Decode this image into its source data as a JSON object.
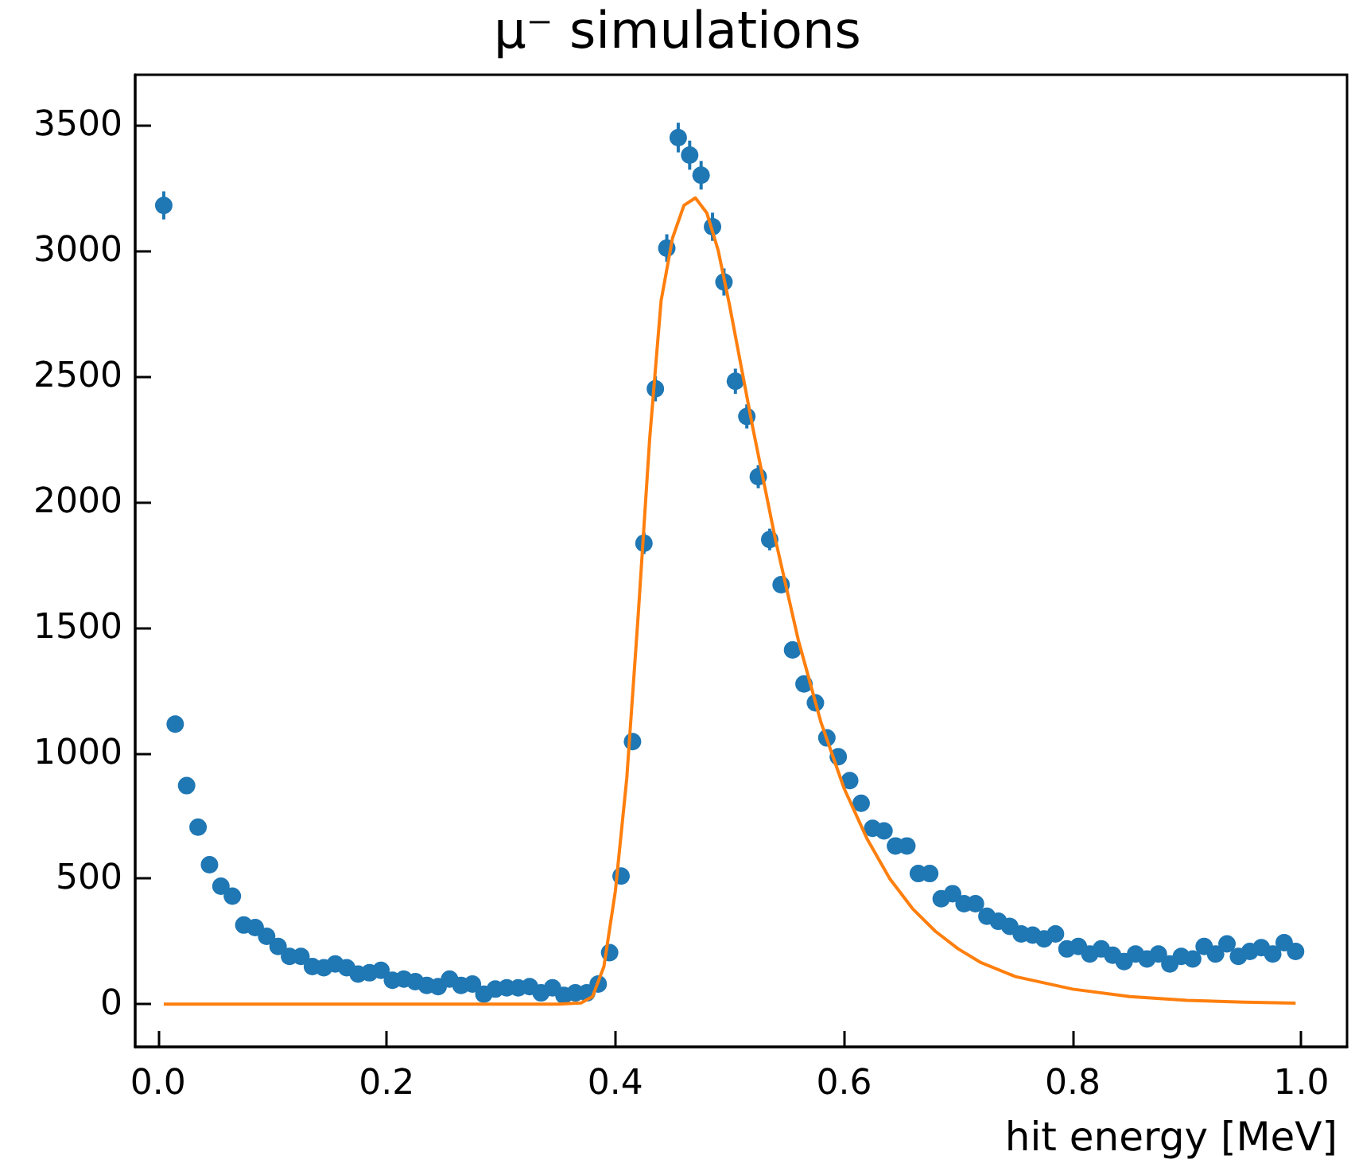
{
  "chart_data": {
    "type": "scatter",
    "title": "μ⁻ simulations",
    "xlabel": "hit energy [MeV]",
    "xlim": [
      -0.02,
      1.04
    ],
    "xticks": [
      {
        "value": 0,
        "label": "0.0"
      },
      0.2,
      0.4,
      0.6,
      0.8,
      {
        "value": 1,
        "label": "1.0"
      }
    ],
    "ylim": [
      -170,
      3700
    ],
    "yticks": [
      0,
      500,
      1000,
      1500,
      2000,
      2500,
      3000,
      3500
    ],
    "series": [
      {
        "color": "#1f77b4",
        "marker": "circle",
        "x": [
          0.005,
          0.015,
          0.025,
          0.035,
          0.045,
          0.055,
          0.065,
          0.075,
          0.085,
          0.095,
          0.105,
          0.115,
          0.125,
          0.135,
          0.145,
          0.155,
          0.165,
          0.175,
          0.185,
          0.195,
          0.205,
          0.215,
          0.225,
          0.235,
          0.245,
          0.255,
          0.265,
          0.275,
          0.285,
          0.295,
          0.305,
          0.315,
          0.325,
          0.335,
          0.345,
          0.355,
          0.365,
          0.375,
          0.385,
          0.395,
          0.405,
          0.415,
          0.425,
          0.435,
          0.445,
          0.455,
          0.465,
          0.475,
          0.485,
          0.495,
          0.505,
          0.515,
          0.525,
          0.535,
          0.545,
          0.555,
          0.565,
          0.575,
          0.585,
          0.595,
          0.605,
          0.615,
          0.625,
          0.635,
          0.645,
          0.655,
          0.665,
          0.675,
          0.685,
          0.695,
          0.705,
          0.715,
          0.725,
          0.735,
          0.745,
          0.755,
          0.765,
          0.775,
          0.785,
          0.795,
          0.805,
          0.815,
          0.825,
          0.835,
          0.845,
          0.855,
          0.865,
          0.875,
          0.885,
          0.895,
          0.905,
          0.915,
          0.925,
          0.935,
          0.945,
          0.955,
          0.965,
          0.975,
          0.985,
          0.995
        ],
        "values": [
          3180,
          1115,
          870,
          705,
          555,
          470,
          430,
          315,
          305,
          270,
          230,
          190,
          190,
          150,
          145,
          160,
          145,
          120,
          125,
          135,
          95,
          100,
          90,
          75,
          70,
          100,
          75,
          80,
          40,
          60,
          65,
          65,
          70,
          45,
          65,
          35,
          45,
          45,
          80,
          205,
          510,
          1045,
          1835,
          2450,
          3010,
          3450,
          3380,
          3300,
          3095,
          2875,
          2480,
          2340,
          2100,
          1850,
          1670,
          1410,
          1275,
          1200,
          1060,
          985,
          890,
          800,
          700,
          690,
          630,
          630,
          520,
          520,
          420,
          440,
          400,
          400,
          350,
          330,
          310,
          280,
          275,
          260,
          280,
          220,
          230,
          200,
          220,
          195,
          170,
          200,
          180,
          200,
          160,
          190,
          180,
          230,
          200,
          240,
          190,
          210,
          225,
          200,
          245,
          210
        ],
        "errors": [
          56,
          33,
          null,
          null,
          null,
          null,
          null,
          null,
          null,
          null,
          null,
          null,
          null,
          null,
          null,
          null,
          null,
          null,
          null,
          null,
          null,
          null,
          null,
          null,
          null,
          null,
          null,
          null,
          null,
          null,
          null,
          null,
          null,
          null,
          null,
          null,
          null,
          null,
          null,
          null,
          null,
          null,
          43,
          50,
          55,
          59,
          58,
          57,
          56,
          54,
          50,
          48,
          46,
          43,
          null,
          null,
          null,
          null,
          null,
          null,
          null,
          null,
          null,
          null,
          null,
          null,
          null,
          null,
          null,
          null,
          null,
          null,
          null,
          null,
          null,
          null,
          null,
          null,
          null,
          null,
          null,
          null,
          null,
          null,
          null,
          null,
          null,
          null,
          null,
          null,
          null,
          null,
          null,
          null,
          null,
          null,
          null,
          null,
          null,
          null
        ]
      },
      {
        "type": "line",
        "color": "#ff7f0e",
        "marker": "none",
        "x": [
          0.005,
          0.35,
          0.37,
          0.38,
          0.39,
          0.4,
          0.41,
          0.42,
          0.43,
          0.44,
          0.45,
          0.46,
          0.47,
          0.48,
          0.49,
          0.5,
          0.52,
          0.54,
          0.56,
          0.58,
          0.6,
          0.62,
          0.64,
          0.66,
          0.68,
          0.7,
          0.72,
          0.75,
          0.8,
          0.85,
          0.9,
          0.95,
          0.995
        ],
        "values": [
          0,
          0,
          5,
          30,
          150,
          450,
          900,
          1550,
          2250,
          2800,
          3050,
          3180,
          3210,
          3150,
          3000,
          2780,
          2300,
          1850,
          1450,
          1120,
          860,
          660,
          500,
          380,
          290,
          220,
          165,
          110,
          60,
          30,
          15,
          8,
          4
        ]
      }
    ]
  }
}
